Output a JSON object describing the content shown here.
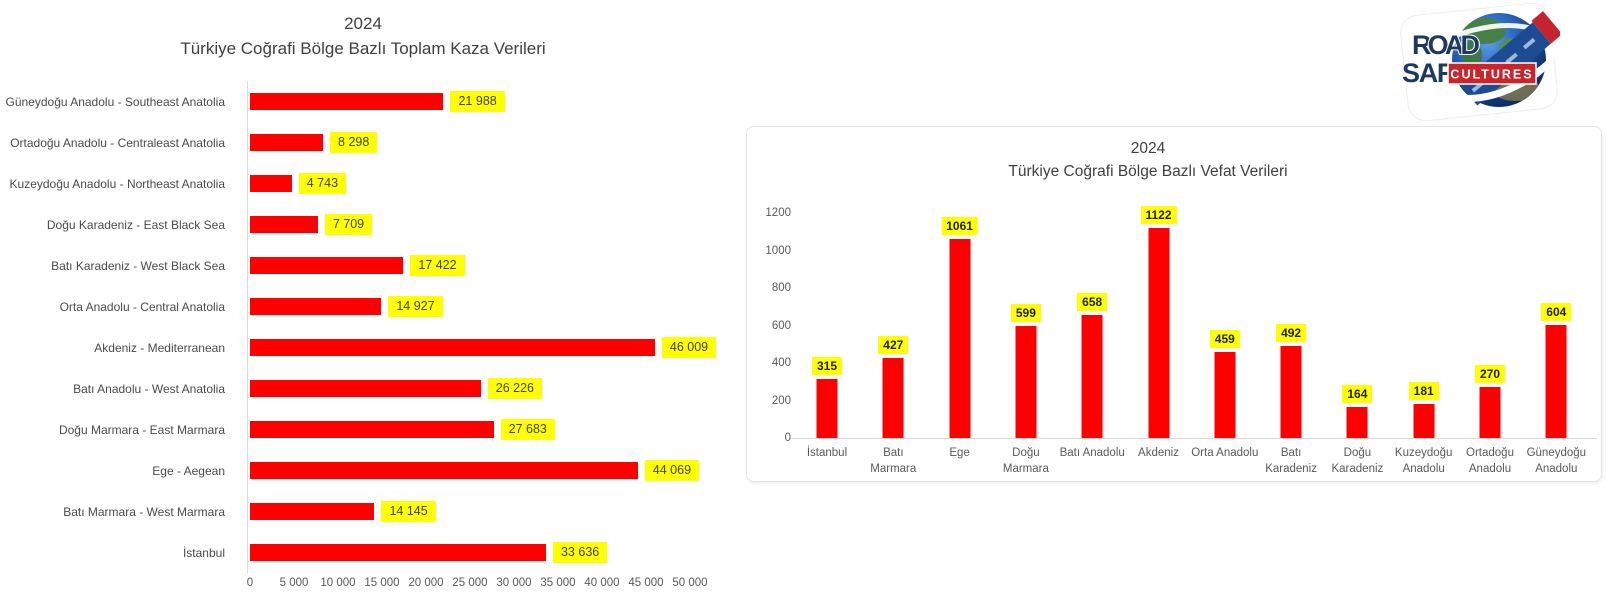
{
  "logo": {
    "line1": "ROAD",
    "line2": "SAFETY",
    "badge": "CULTURES",
    "text_color": "#1c3a5e",
    "badge_color": "#c9252b"
  },
  "chart_data": [
    {
      "type": "bar",
      "orientation": "horizontal",
      "title": "2024",
      "subtitle": "Türkiye Coğrafi Bölge Bazlı Toplam Kaza Verileri",
      "categories": [
        "Güneydoğu Anadolu - Southeast Anatolia",
        "Ortadoğu Anadolu - Centraleast Anatolia",
        "Kuzeydoğu Anadolu - Northeast Anatolia",
        "Doğu Karadeniz - East Black Sea",
        "Batı Karadeniz - West Black Sea",
        "Orta Anadolu - Central Anatolia",
        "Akdeniz - Mediterranean",
        "Batı Anadolu - West Anatolia",
        "Doğu Marmara - East Marmara",
        "Ege - Aegean",
        "Batı Marmara - West Marmara",
        "İstanbul"
      ],
      "values": [
        21988,
        8298,
        4743,
        7709,
        17422,
        14927,
        46009,
        26226,
        27683,
        44069,
        14145,
        33636
      ],
      "value_labels": [
        "21 988",
        "8 298",
        "4 743",
        "7 709",
        "17 422",
        "14 927",
        "46 009",
        "26 226",
        "27 683",
        "44 069",
        "14 145",
        "33 636"
      ],
      "xlim": [
        0,
        50000
      ],
      "xticks": [
        0,
        5000,
        10000,
        15000,
        20000,
        25000,
        30000,
        35000,
        40000,
        45000,
        50000
      ],
      "xtick_labels": [
        "0",
        "5 000",
        "10 000",
        "15 000",
        "20 000",
        "25 000",
        "30 000",
        "35 000",
        "40 000",
        "45 000",
        "50 000"
      ],
      "bar_color": "#ff0000",
      "label_bg": "#ffff00",
      "grid": false,
      "legend": false
    },
    {
      "type": "bar",
      "orientation": "vertical",
      "title": "2024",
      "subtitle": "Türkiye Coğrafi Bölge Bazlı Vefat Verileri",
      "categories": [
        "İstanbul",
        "Batı\nMarmara",
        "Ege",
        "Doğu\nMarmara",
        "Batı Anadolu",
        "Akdeniz",
        "Orta Anadolu",
        "Batı\nKaradeniz",
        "Doğu\nKaradeniz",
        "Kuzeydoğu\nAnadolu",
        "Ortadoğu\nAnadolu",
        "Güneydoğu\nAnadolu"
      ],
      "values": [
        315,
        427,
        1061,
        599,
        658,
        1122,
        459,
        492,
        164,
        181,
        270,
        604
      ],
      "value_labels": [
        "315",
        "427",
        "1061",
        "599",
        "658",
        "1122",
        "459",
        "492",
        "164",
        "181",
        "270",
        "604"
      ],
      "ylim": [
        0,
        1200
      ],
      "yticks": [
        0,
        200,
        400,
        600,
        800,
        1000,
        1200
      ],
      "ytick_labels": [
        "0",
        "200",
        "400",
        "600",
        "800",
        "1000",
        "1200"
      ],
      "bar_color": "#ff0000",
      "label_bg": "#ffff00",
      "grid": false,
      "legend": false
    }
  ]
}
